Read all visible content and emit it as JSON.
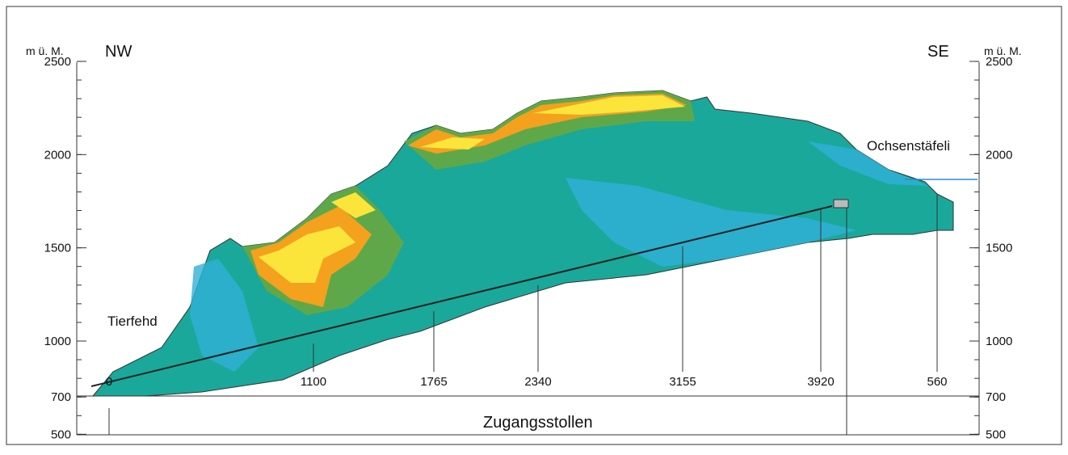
{
  "left_axis": {
    "label": "m ü. M.",
    "ticks": [
      2500,
      2000,
      1500,
      1000,
      700,
      500
    ]
  },
  "right_axis": {
    "label": "m ü. M.",
    "ticks": [
      2500,
      2000,
      1500,
      1000,
      700,
      500
    ]
  },
  "labels": {
    "nw": "NW",
    "se": "SE",
    "tierfehd": "Tierfehd",
    "ochsenstaefeli": "Ochsenstäfeli",
    "tunnel": "Zugangsstollen"
  },
  "stations": [
    "0",
    "1100",
    "1765",
    "2340",
    "3155",
    "3920",
    "560"
  ]
}
